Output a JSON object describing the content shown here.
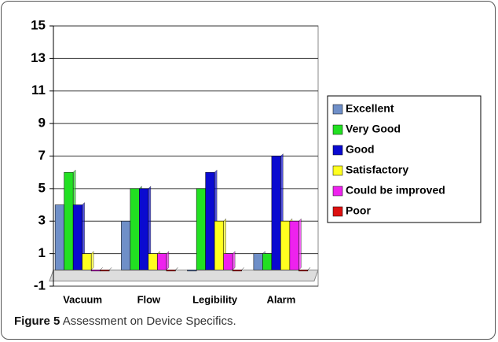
{
  "chart_data": {
    "type": "bar",
    "categories": [
      "Vacuum",
      "Flow",
      "Legibility",
      "Alarm"
    ],
    "series": [
      {
        "name": "Excellent",
        "color": "#6f8fc8",
        "values": [
          4,
          3,
          0,
          1
        ]
      },
      {
        "name": "Very Good",
        "color": "#22e022",
        "values": [
          6,
          5,
          5,
          1
        ]
      },
      {
        "name": "Good",
        "color": "#0a0ad0",
        "values": [
          4,
          5,
          6,
          7
        ]
      },
      {
        "name": "Satisfactory",
        "color": "#ffff20",
        "values": [
          1,
          1,
          3,
          3
        ]
      },
      {
        "name": "Could be improved",
        "color": "#ee22ee",
        "values": [
          0,
          1,
          1,
          3
        ]
      },
      {
        "name": "Poor",
        "color": "#dd1111",
        "values": [
          0,
          0,
          0,
          0
        ]
      }
    ],
    "ylim": [
      -1,
      15
    ],
    "yticks": [
      -1,
      1,
      3,
      5,
      7,
      9,
      11,
      13,
      15
    ],
    "grid": true,
    "legend": "right"
  },
  "caption": {
    "label": "Figure 5",
    "text": "Assessment on Device Specifics."
  }
}
